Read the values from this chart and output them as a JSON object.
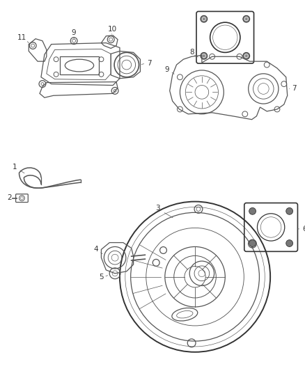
{
  "bg_color": "#ffffff",
  "line_color": "#555555",
  "dark_line": "#333333",
  "label_color": "#333333",
  "fig_width": 4.38,
  "fig_height": 5.33,
  "dpi": 100
}
